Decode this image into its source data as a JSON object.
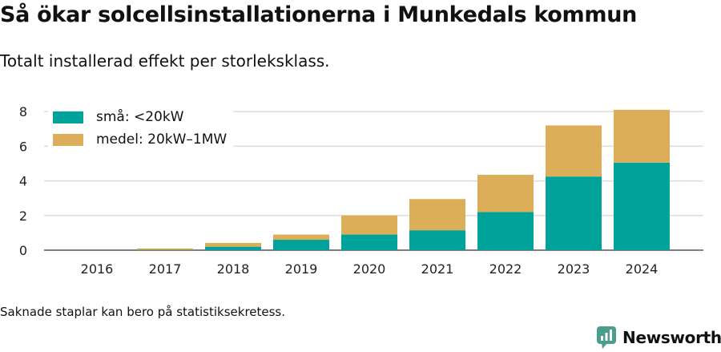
{
  "title": "Så ökar solcellsinstallationerna i Munkedals kommun",
  "subtitle": "Totalt installerad effekt per storleksklass.",
  "footnote": "Saknade staplar kan bero på statistiksekretess.",
  "brand": {
    "name": "Newsworthy",
    "color": "#4a9e8c",
    "icon": "chart-logo-icon"
  },
  "chart_data": {
    "type": "bar",
    "stacked": true,
    "categories": [
      "2016",
      "2017",
      "2018",
      "2019",
      "2020",
      "2021",
      "2022",
      "2023",
      "2024"
    ],
    "series": [
      {
        "name": "små: <20kW",
        "color": "#00a39a",
        "values": [
          0,
          0.02,
          0.2,
          0.6,
          0.9,
          1.15,
          2.2,
          4.25,
          5.05
        ]
      },
      {
        "name": "medel: 20kW–1MW",
        "color": "#dcae5a",
        "values": [
          0,
          0.08,
          0.22,
          0.3,
          1.1,
          1.8,
          2.15,
          2.95,
          3.05
        ]
      }
    ],
    "yticks": [
      0,
      2,
      4,
      6,
      8
    ],
    "ylim": [
      0,
      8.7
    ],
    "grid": true,
    "legend": "top-left",
    "xlabel": "",
    "ylabel": ""
  }
}
